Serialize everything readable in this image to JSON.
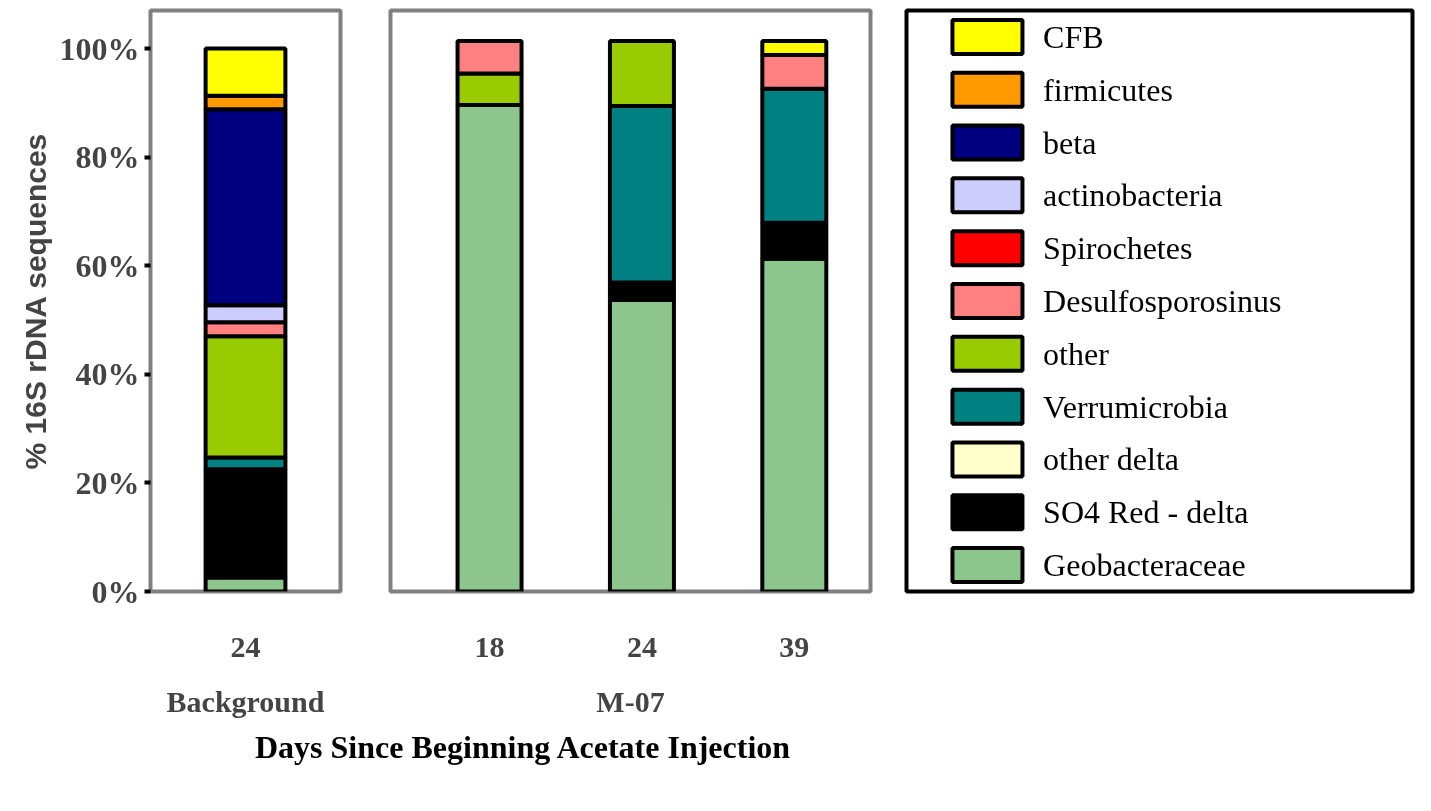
{
  "chart_data": [
    {
      "type": "bar",
      "stacked": true,
      "ylabel": "% 16S rDNA sequences",
      "xlabel": "Background",
      "categories": [
        "24"
      ],
      "ylim": [
        0,
        107
      ],
      "yticks": [
        {
          "value": 0,
          "label": "0%"
        },
        {
          "value": 20,
          "label": "20%"
        },
        {
          "value": 40,
          "label": "40%"
        },
        {
          "value": 60,
          "label": "60%"
        },
        {
          "value": 80,
          "label": "80%"
        },
        {
          "value": 100,
          "label": "100%"
        }
      ],
      "grid": false,
      "series": [
        {
          "color": "#8cc68c",
          "values": [
            2.6
          ]
        },
        {
          "color": "#000000",
          "values": [
            19.9
          ]
        },
        {
          "color": "#008080",
          "values": [
            2.2
          ]
        },
        {
          "color": "#99cc00",
          "values": [
            22.3
          ]
        },
        {
          "color": "#ff8080",
          "values": [
            2.6
          ]
        },
        {
          "color": "#ccccff",
          "values": [
            3.1
          ]
        },
        {
          "color": "#000080",
          "values": [
            36.1
          ]
        },
        {
          "color": "#ff9900",
          "values": [
            2.5
          ]
        },
        {
          "color": "#ffff00",
          "values": [
            8.7
          ]
        }
      ]
    },
    {
      "type": "bar",
      "stacked": true,
      "xlabel": "M-07",
      "categories": [
        "18",
        "24",
        "39"
      ],
      "ylim": [
        0,
        107
      ],
      "tick_labels": "x",
      "grid": false,
      "legend": "right",
      "annotations": [
        "Days Since Beginning Acetate Injection"
      ],
      "series": [
        {
          "name": "Geobacteraceae",
          "color": "#8cc68c",
          "values": [
            89.6,
            53.7,
            61.3
          ]
        },
        {
          "name": "SO4 Red - delta",
          "color": "#000000",
          "values": [
            null,
            3.2,
            6.6
          ]
        },
        {
          "name": "other delta",
          "color": "#ffffcc",
          "values": [
            null,
            null,
            null
          ]
        },
        {
          "name": "Verrumicrobia",
          "color": "#008080",
          "values": [
            null,
            32.5,
            24.7
          ]
        },
        {
          "name": "other",
          "color": "#99cc00",
          "values": [
            5.8,
            12.0,
            null
          ]
        },
        {
          "name": "Desulfosporosinus",
          "color": "#ff8080",
          "values": [
            6.0,
            null,
            6.2
          ]
        },
        {
          "name": "Spirochetes",
          "color": "#ff0000",
          "values": [
            null,
            null,
            null
          ]
        },
        {
          "name": "actinobacteria",
          "color": "#ccccff",
          "values": [
            null,
            null,
            null
          ]
        },
        {
          "name": "beta",
          "color": "#000080",
          "values": [
            null,
            null,
            null
          ]
        },
        {
          "name": "firmicutes",
          "color": "#ff9900",
          "values": [
            null,
            null,
            null
          ]
        },
        {
          "name": "CFB",
          "color": "#ffff00",
          "values": [
            null,
            null,
            2.6
          ]
        }
      ]
    }
  ]
}
